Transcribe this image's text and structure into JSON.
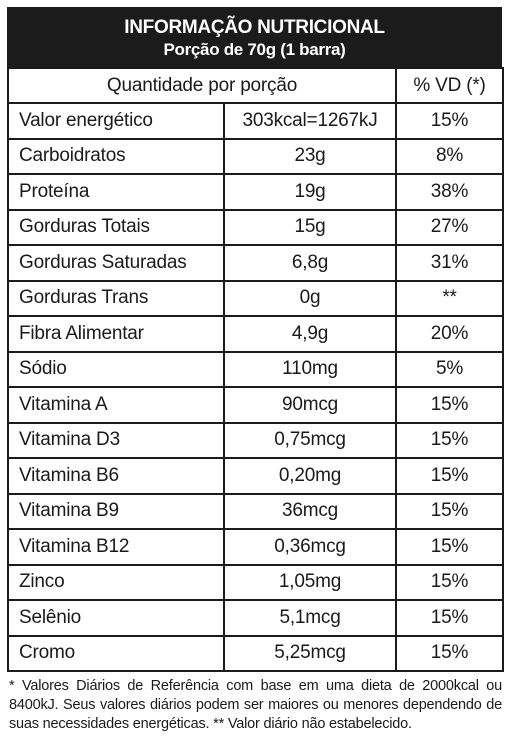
{
  "header": {
    "title": "INFORMAÇÃO NUTRICIONAL",
    "subtitle": "Porção de 70g (1 barra)"
  },
  "columns": {
    "quantity": "Quantidade por porção",
    "vd": "% VD (*)"
  },
  "rows": [
    {
      "name": "Valor energético",
      "amount": "303kcal=1267kJ",
      "vd": "15%"
    },
    {
      "name": "Carboidratos",
      "amount": "23g",
      "vd": "8%"
    },
    {
      "name": "Proteína",
      "amount": "19g",
      "vd": "38%"
    },
    {
      "name": "Gorduras Totais",
      "amount": "15g",
      "vd": "27%"
    },
    {
      "name": "Gorduras Saturadas",
      "amount": "6,8g",
      "vd": "31%"
    },
    {
      "name": "Gorduras Trans",
      "amount": "0g",
      "vd": "**"
    },
    {
      "name": "Fibra Alimentar",
      "amount": "4,9g",
      "vd": "20%"
    },
    {
      "name": "Sódio",
      "amount": "110mg",
      "vd": "5%"
    },
    {
      "name": "Vitamina A",
      "amount": "90mcg",
      "vd": "15%"
    },
    {
      "name": "Vitamina D3",
      "amount": "0,75mcg",
      "vd": "15%"
    },
    {
      "name": "Vitamina B6",
      "amount": "0,20mg",
      "vd": "15%"
    },
    {
      "name": "Vitamina B9",
      "amount": "36mcg",
      "vd": "15%"
    },
    {
      "name": "Vitamina B12",
      "amount": "0,36mcg",
      "vd": "15%"
    },
    {
      "name": "Zinco",
      "amount": "1,05mg",
      "vd": "15%"
    },
    {
      "name": "Selênio",
      "amount": "5,1mcg",
      "vd": "15%"
    },
    {
      "name": "Cromo",
      "amount": "5,25mcg",
      "vd": "15%"
    }
  ],
  "footnote": "* Valores Diários de Referência com base em uma dieta de 2000kcal ou 8400kJ. Seus valores diários podem ser maiores ou menores dependendo de suas necessidades energéticas. ** Valor diário não estabelecido."
}
